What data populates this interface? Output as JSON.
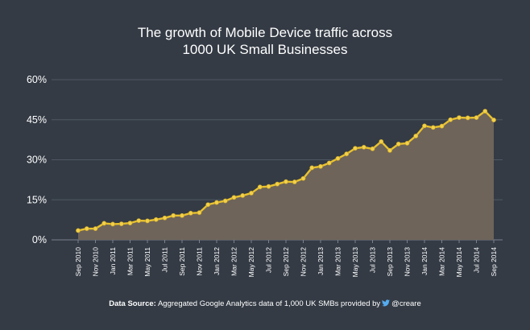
{
  "chart_data": {
    "type": "area",
    "title_line1": "The growth of Mobile Device traffic across",
    "title_line2": "1000 UK Small Businesses",
    "xlabel": "",
    "ylabel": "",
    "ylim": [
      0,
      60
    ],
    "y_ticks": [
      0,
      15,
      30,
      45,
      60
    ],
    "y_tick_labels": [
      "0%",
      "15%",
      "30%",
      "45%",
      "60%"
    ],
    "grid": true,
    "x_tick_labels": [
      "Sep 2010",
      "Nov 2010",
      "Jan 2011",
      "Mar 2011",
      "May 2011",
      "Jul 2011",
      "Sep 2011",
      "Nov 2011",
      "Jan 2012",
      "Mar 2012",
      "May 2012",
      "Jul 2012",
      "Sep 2012",
      "Nov 2012",
      "Jan 2013",
      "Mar 2013",
      "May 2013",
      "Jul 2013",
      "Sep 2013",
      "Nov 2013",
      "Jan 2014",
      "Mar 2014",
      "May 2014",
      "Jul 2014",
      "Sep 2014"
    ],
    "series": [
      {
        "name": "Mobile Device traffic (%)",
        "values": [
          3.5,
          4.2,
          4.2,
          6.2,
          5.9,
          6.0,
          6.3,
          7.2,
          7.1,
          7.6,
          8.2,
          9.1,
          9.1,
          10.0,
          10.2,
          13.2,
          14.0,
          14.6,
          15.9,
          16.6,
          17.5,
          19.8,
          20.0,
          20.9,
          21.8,
          21.7,
          23.0,
          27.0,
          27.5,
          28.8,
          30.5,
          32.2,
          34.3,
          34.7,
          34.1,
          36.8,
          33.5,
          35.9,
          36.2,
          38.9,
          42.7,
          42.1,
          42.6,
          45.0,
          45.8,
          45.7,
          45.8,
          48.2,
          44.9
        ]
      }
    ],
    "colors": {
      "line": "#e9c230",
      "marker": "#f2d04a",
      "area": "#6e645a",
      "grid": "#4f5762",
      "axis": "#7a8290"
    }
  },
  "footer": {
    "label": "Data Source:",
    "text": "Aggregated Google Analytics data of 1,000 UK SMBs provided by",
    "handle": "@creare",
    "icon": "twitter-bird-icon",
    "icon_color": "#55acee"
  }
}
